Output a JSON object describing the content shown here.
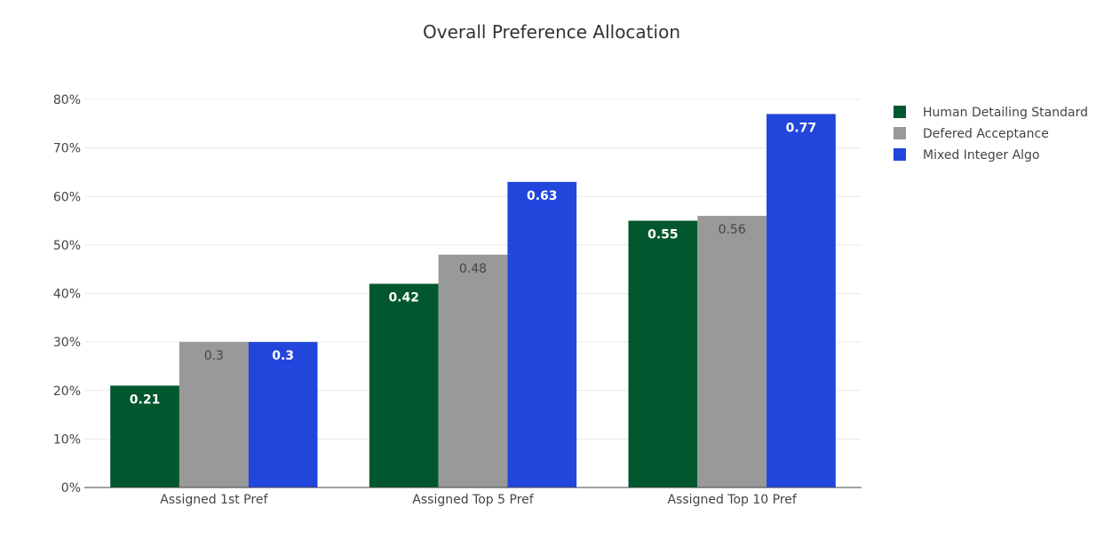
{
  "chart_data": {
    "type": "bar",
    "title": "Overall Preference Allocation",
    "xlabel": "",
    "ylabel": "",
    "ylim": [
      0,
      0.8
    ],
    "yticks": [
      0,
      0.1,
      0.2,
      0.3,
      0.4,
      0.5,
      0.6,
      0.7,
      0.8
    ],
    "ytick_labels": [
      "0%",
      "10%",
      "20%",
      "30%",
      "40%",
      "50%",
      "60%",
      "70%",
      "80%"
    ],
    "categories": [
      "Assigned 1st Pref",
      "Assigned Top 5 Pref",
      "Assigned Top 10 Pref"
    ],
    "series": [
      {
        "name": "Human Detailing Standard",
        "color": "#02572f",
        "values": [
          0.21,
          0.42,
          0.55
        ],
        "labels": [
          "0.21",
          "0.42",
          "0.55"
        ]
      },
      {
        "name": "Defered Acceptance",
        "color": "#999999",
        "values": [
          0.3,
          0.48,
          0.56
        ],
        "labels": [
          "0.3",
          "0.48",
          "0.56"
        ]
      },
      {
        "name": "Mixed Integer Algo",
        "color": "#2245dc",
        "values": [
          0.3,
          0.63,
          0.77
        ],
        "labels": [
          "0.3",
          "0.63",
          "0.77"
        ]
      }
    ],
    "grid": true,
    "legend": "top-right"
  }
}
